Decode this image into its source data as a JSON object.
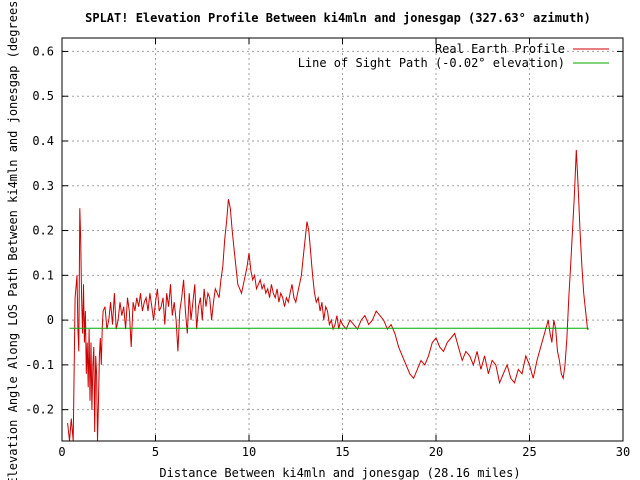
{
  "chart_data": {
    "type": "line",
    "title": "SPLAT! Elevation Profile Between ki4mln and jonesgap (327.63° azimuth)",
    "xlabel": "Distance Between ki4mln and jonesgap (28.16 miles)",
    "ylabel": "Elevation Angle Along LOS Path Between ki4mln and jonesgap (degrees)",
    "xlim": [
      0,
      30
    ],
    "ylim": [
      -0.27,
      0.63
    ],
    "x_ticks": [
      0,
      5,
      10,
      15,
      20,
      25,
      30
    ],
    "y_ticks": [
      -0.2,
      -0.1,
      0,
      0.1,
      0.2,
      0.3,
      0.4,
      0.5,
      0.6
    ],
    "x_tick_labels": [
      "0",
      "5",
      "10",
      "15",
      "20",
      "25",
      "30"
    ],
    "y_tick_labels": [
      "-0.2",
      "-0.1",
      "0",
      "0.1",
      "0.2",
      "0.3",
      "0.4",
      "0.5",
      "0.6"
    ],
    "grid": true,
    "legend_position": "top-right",
    "series": [
      {
        "name": "Real Earth Profile",
        "color": "#cc0000",
        "x": [
          0.3,
          0.4,
          0.5,
          0.6,
          0.7,
          0.8,
          0.85,
          0.9,
          0.95,
          1.0,
          1.05,
          1.1,
          1.15,
          1.2,
          1.25,
          1.3,
          1.35,
          1.4,
          1.45,
          1.5,
          1.55,
          1.6,
          1.65,
          1.7,
          1.75,
          1.8,
          1.85,
          1.9,
          1.95,
          2.0,
          2.05,
          2.1,
          2.15,
          2.2,
          2.3,
          2.4,
          2.5,
          2.6,
          2.7,
          2.8,
          2.9,
          3.0,
          3.1,
          3.2,
          3.3,
          3.4,
          3.5,
          3.6,
          3.7,
          3.8,
          3.9,
          4.0,
          4.1,
          4.2,
          4.3,
          4.4,
          4.5,
          4.6,
          4.7,
          4.8,
          4.9,
          5.0,
          5.1,
          5.2,
          5.3,
          5.4,
          5.5,
          5.6,
          5.7,
          5.8,
          5.9,
          6.0,
          6.1,
          6.2,
          6.3,
          6.4,
          6.5,
          6.6,
          6.7,
          6.8,
          6.9,
          7.0,
          7.1,
          7.2,
          7.3,
          7.4,
          7.5,
          7.6,
          7.7,
          7.8,
          7.9,
          8.0,
          8.1,
          8.2,
          8.3,
          8.4,
          8.5,
          8.6,
          8.7,
          8.8,
          8.9,
          9.0,
          9.1,
          9.2,
          9.3,
          9.4,
          9.5,
          9.6,
          9.7,
          9.8,
          9.9,
          10.0,
          10.1,
          10.2,
          10.3,
          10.4,
          10.5,
          10.6,
          10.7,
          10.8,
          10.9,
          11.0,
          11.1,
          11.2,
          11.3,
          11.4,
          11.5,
          11.6,
          11.7,
          11.8,
          11.9,
          12.0,
          12.1,
          12.2,
          12.3,
          12.4,
          12.5,
          12.6,
          12.7,
          12.8,
          12.9,
          13.0,
          13.1,
          13.2,
          13.3,
          13.4,
          13.5,
          13.6,
          13.7,
          13.8,
          13.9,
          14.0,
          14.1,
          14.2,
          14.3,
          14.4,
          14.5,
          14.6,
          14.7,
          14.8,
          14.9,
          15.0,
          15.2,
          15.4,
          15.6,
          15.8,
          16.0,
          16.2,
          16.4,
          16.6,
          16.8,
          17.0,
          17.2,
          17.4,
          17.6,
          17.8,
          18.0,
          18.2,
          18.4,
          18.6,
          18.8,
          19.0,
          19.2,
          19.4,
          19.6,
          19.8,
          20.0,
          20.2,
          20.4,
          20.6,
          20.8,
          21.0,
          21.2,
          21.4,
          21.6,
          21.8,
          22.0,
          22.2,
          22.4,
          22.6,
          22.8,
          23.0,
          23.2,
          23.4,
          23.6,
          23.8,
          24.0,
          24.2,
          24.4,
          24.6,
          24.8,
          25.0,
          25.2,
          25.4,
          25.6,
          25.8,
          26.0,
          26.1,
          26.2,
          26.3,
          26.4,
          26.5,
          26.6,
          26.7,
          26.8,
          26.9,
          27.0,
          27.1,
          27.2,
          27.3,
          27.4,
          27.5,
          27.6,
          27.7,
          27.8,
          27.9,
          28.0,
          28.1,
          28.16
        ],
        "y": [
          -0.23,
          -0.27,
          -0.22,
          -0.27,
          0.05,
          0.1,
          -0.02,
          -0.07,
          0.25,
          0.18,
          0.05,
          -0.03,
          0.08,
          -0.05,
          0.02,
          -0.12,
          -0.05,
          -0.15,
          -0.02,
          -0.18,
          -0.05,
          -0.2,
          -0.1,
          -0.06,
          -0.25,
          -0.08,
          -0.12,
          -0.27,
          -0.18,
          -0.08,
          -0.04,
          -0.1,
          -0.02,
          0.02,
          0.03,
          -0.02,
          0.0,
          0.04,
          -0.01,
          0.06,
          -0.02,
          0.0,
          0.04,
          0.01,
          0.03,
          -0.02,
          0.05,
          0.02,
          -0.06,
          0.04,
          0.02,
          0.05,
          0.03,
          0.06,
          0.02,
          0.04,
          0.05,
          0.02,
          0.06,
          0.03,
          0.0,
          0.04,
          0.07,
          0.02,
          0.03,
          0.05,
          -0.01,
          0.06,
          0.03,
          0.08,
          0.01,
          0.04,
          0.0,
          -0.07,
          0.02,
          0.05,
          0.09,
          0.02,
          -0.03,
          0.06,
          0.0,
          0.04,
          0.08,
          -0.02,
          0.03,
          0.05,
          0.0,
          0.07,
          0.03,
          0.06,
          0.05,
          0.0,
          0.04,
          0.07,
          0.06,
          0.05,
          0.09,
          0.12,
          0.18,
          0.22,
          0.27,
          0.25,
          0.2,
          0.16,
          0.12,
          0.08,
          0.07,
          0.06,
          0.08,
          0.1,
          0.12,
          0.15,
          0.11,
          0.09,
          0.1,
          0.07,
          0.08,
          0.09,
          0.07,
          0.08,
          0.06,
          0.07,
          0.05,
          0.08,
          0.06,
          0.05,
          0.07,
          0.04,
          0.06,
          0.05,
          0.03,
          0.05,
          0.04,
          0.06,
          0.08,
          0.05,
          0.04,
          0.06,
          0.08,
          0.1,
          0.14,
          0.18,
          0.22,
          0.2,
          0.15,
          0.1,
          0.06,
          0.04,
          0.05,
          0.02,
          0.04,
          0.0,
          0.03,
          0.02,
          -0.01,
          0.0,
          -0.02,
          -0.01,
          0.01,
          -0.02,
          0.0,
          -0.01,
          -0.02,
          0.0,
          -0.01,
          -0.02,
          0.0,
          0.01,
          -0.01,
          0.0,
          0.02,
          0.01,
          0.0,
          -0.02,
          -0.01,
          -0.03,
          -0.06,
          -0.08,
          -0.1,
          -0.12,
          -0.13,
          -0.11,
          -0.09,
          -0.1,
          -0.08,
          -0.05,
          -0.04,
          -0.06,
          -0.07,
          -0.05,
          -0.04,
          -0.03,
          -0.06,
          -0.09,
          -0.07,
          -0.08,
          -0.1,
          -0.07,
          -0.11,
          -0.08,
          -0.12,
          -0.09,
          -0.1,
          -0.14,
          -0.12,
          -0.1,
          -0.13,
          -0.14,
          -0.11,
          -0.12,
          -0.08,
          -0.1,
          -0.13,
          -0.09,
          -0.06,
          -0.03,
          0.0,
          -0.03,
          -0.05,
          0.0,
          -0.02,
          -0.07,
          -0.09,
          -0.12,
          -0.13,
          -0.1,
          -0.04,
          0.05,
          0.12,
          0.2,
          0.28,
          0.38,
          0.3,
          0.2,
          0.12,
          0.06,
          0.02,
          -0.02,
          -0.02
        ]
      },
      {
        "name": "Line of Sight Path (-0.02° elevation)",
        "color": "#00aa00",
        "x": [
          0.4,
          28.16
        ],
        "y": [
          -0.018,
          -0.018
        ]
      }
    ]
  }
}
